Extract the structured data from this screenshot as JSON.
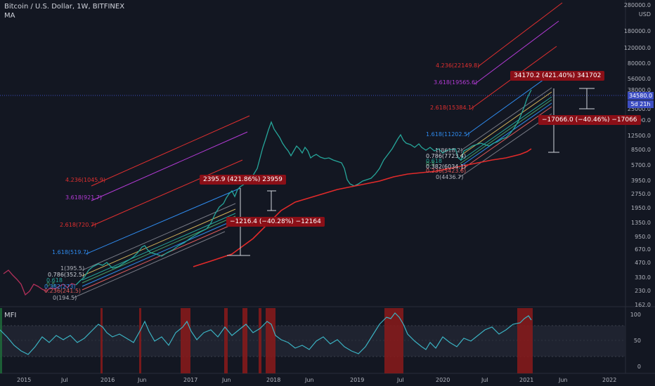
{
  "legend": {
    "title": "Bitcoin / U.S. Dollar, 1W, BITFINEX",
    "ma": "MA",
    "mfi": "MFI"
  },
  "price_axis": {
    "unit": "USD",
    "labels": [
      "280000.0",
      "180000.0",
      "120000.0",
      "80000.0",
      "56000.0",
      "38000.0",
      "25000.0",
      "18500.0",
      "12500.0",
      "8500.0",
      "5700.0",
      "3950.0",
      "2750.0",
      "1950.0",
      "1350.0",
      "950.0",
      "670.0",
      "470.0",
      "330.0",
      "230.0",
      "162.0"
    ],
    "current_price": "34580.0",
    "countdown": "5d 21h"
  },
  "mfi_axis": {
    "labels": [
      "100",
      "50",
      "0"
    ]
  },
  "time_axis": {
    "labels": [
      "2015",
      "Jul",
      "2016",
      "Jun",
      "2017",
      "Jun",
      "2018",
      "Jun",
      "2019",
      "Jul",
      "2020",
      "Jul",
      "2021",
      "Jun",
      "2022"
    ]
  },
  "callouts": {
    "a": "2395.9 (421.86%) 23959",
    "b": "−1216.4 (−40.28%) −12164",
    "c": "34170.2 (421.40%) 341702",
    "d": "−17066.0 (−40.46%) −17066"
  },
  "fib_left": [
    "4.236(1045.9)",
    "3.618(921.7)",
    "2.618(720.7)",
    "1.618(519.7)",
    "1(395.5)",
    "0.786(352.5)",
    "0.618",
    "0.5",
    "0.382(273)",
    "0.236(241.5)",
    "0(194.5)"
  ],
  "fib_right": [
    "4.236(22149.8)",
    "3.618(19565.6)",
    "2.618(15384.1)",
    "1.618(11202.5)",
    "1(8618.2)",
    "0.786(7723.4)",
    "0.618",
    "0.5",
    "0.382(6034.1)",
    "0.236(5423.6)",
    "0(4436.7)"
  ],
  "colors": {
    "background": "#131722",
    "up": "#26a69a",
    "down": "#b2305a",
    "ma": "#e22a2a",
    "mfi": "#3bb3c3",
    "highlight": "#8b1a1a",
    "fib_blue": "#2f8cf0",
    "fib_red": "#e02f2f",
    "fib_purple": "#b43bd6"
  }
}
